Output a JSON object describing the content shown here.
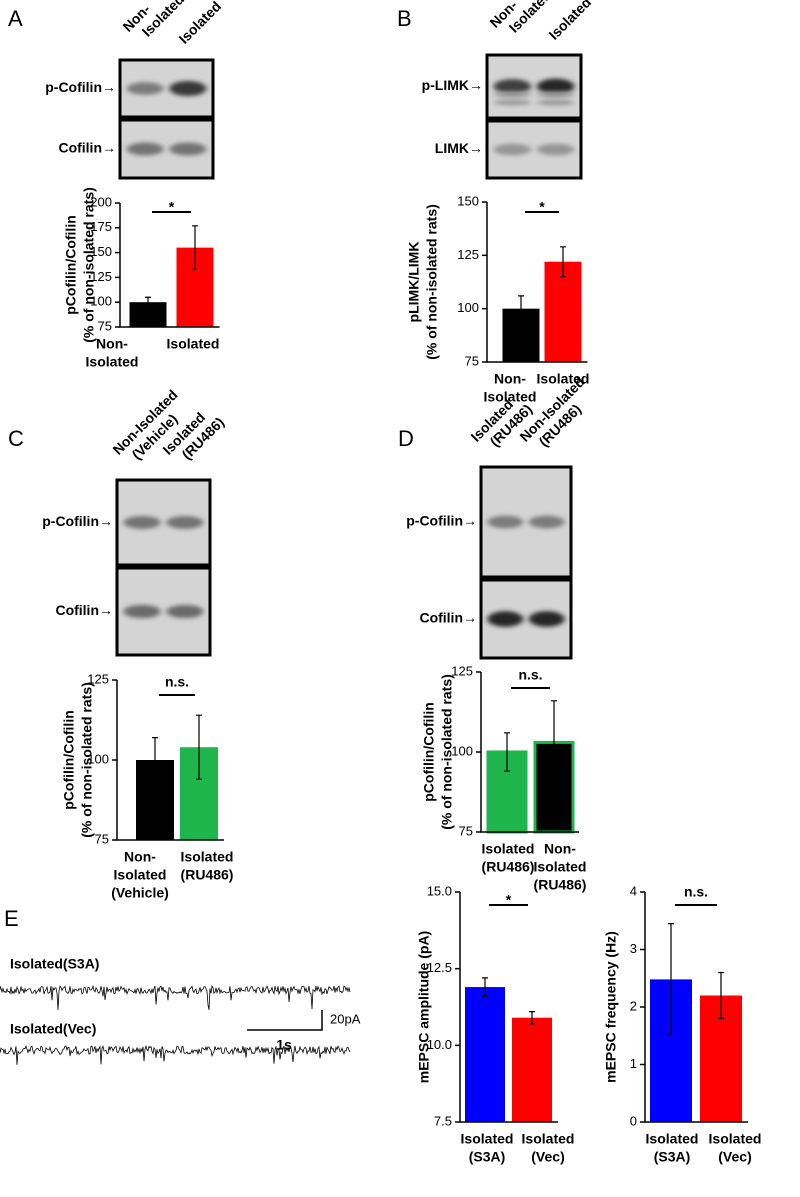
{
  "panels": [
    {
      "letter": "A",
      "lanes": [
        [
          "Non-",
          "Isolated"
        ],
        [
          "Isolated"
        ]
      ],
      "bands": [
        "p-Cofilin→",
        "Cofilin→"
      ]
    },
    {
      "letter": "B",
      "lanes": [
        [
          "Non-",
          "Isolated"
        ],
        [
          "Isolated"
        ]
      ],
      "bands": [
        "p-LIMK→",
        "LIMK→"
      ]
    },
    {
      "letter": "C",
      "lanes": [
        [
          "Non-Isolated",
          "(Vehicle)"
        ],
        [
          "Isolated",
          "(RU486)"
        ]
      ],
      "bands": [
        "p-Cofilin→",
        "Cofilin→"
      ]
    },
    {
      "letter": "D",
      "lanes": [
        [
          "Isolated",
          "(RU486)"
        ],
        [
          "Non-Isolated",
          "(RU486)"
        ]
      ],
      "bands": [
        "p-Cofilin→",
        "Cofilin→"
      ]
    },
    {
      "letter": "E",
      "traces": [
        "Isolated(S3A)",
        "Isolated(Vec)"
      ],
      "scale": [
        "20pA",
        "1s"
      ]
    }
  ],
  "chart_data": [
    {
      "type": "bar",
      "ylabel": [
        "pCofilin/Cofilin",
        "(% of non-isolated rats)"
      ],
      "categories": [
        [
          "Non-",
          "Isolated"
        ],
        [
          "Isolated"
        ]
      ],
      "values": [
        100,
        155
      ],
      "errors": [
        5,
        22
      ],
      "colors": [
        "#000000",
        "#ff0000"
      ],
      "annotation": "*",
      "ylim": [
        75,
        200
      ],
      "yticks": [
        75,
        100,
        125,
        150,
        175,
        200
      ]
    },
    {
      "type": "bar",
      "ylabel": [
        "pLIMK/LIMK",
        "(% of non-isolated rats)"
      ],
      "categories": [
        [
          "Non-",
          "Isolated"
        ],
        [
          "Isolated"
        ]
      ],
      "values": [
        100,
        122
      ],
      "errors": [
        6,
        7
      ],
      "colors": [
        "#000000",
        "#ff0000"
      ],
      "annotation": "*",
      "ylim": [
        75,
        150
      ],
      "yticks": [
        75,
        100,
        125,
        150
      ]
    },
    {
      "type": "bar",
      "ylabel": [
        "pCofilin/Cofilin",
        "(% of non-isolated rats)"
      ],
      "categories": [
        [
          "Non-",
          "Isolated",
          "(Vehicle)"
        ],
        [
          "Isolated",
          "(RU486)"
        ]
      ],
      "values": [
        100,
        104
      ],
      "errors": [
        7,
        10
      ],
      "colors": [
        "#000000",
        "#1db54c"
      ],
      "annotation": "n.s.",
      "ylim": [
        75,
        125
      ],
      "yticks": [
        75,
        100,
        125
      ]
    },
    {
      "type": "bar",
      "ylabel": [
        "pCofilin/Cofilin",
        "(% of non-isolated rats)"
      ],
      "categories": [
        [
          "Isolated",
          "(RU486)"
        ],
        [
          "Non-",
          "Isolated",
          "(RU486)"
        ]
      ],
      "values": [
        100,
        103
      ],
      "errors": [
        6,
        13
      ],
      "colors": [
        "#1db54c",
        "#000000"
      ],
      "edgecolor": "#1db54c",
      "annotation": "n.s.",
      "ylim": [
        75,
        125
      ],
      "yticks": [
        75,
        100,
        125
      ]
    },
    {
      "type": "bar",
      "ylabel": [
        "mEPSC amplitude (pA)"
      ],
      "categories": [
        [
          "Isolated",
          "(S3A)"
        ],
        [
          "Isolated",
          "(Vec)"
        ]
      ],
      "values": [
        11.9,
        10.9
      ],
      "errors": [
        0.3,
        0.2
      ],
      "colors": [
        "#0000ff",
        "#ff0000"
      ],
      "annotation": "*",
      "ylim": [
        7.5,
        15
      ],
      "yticks": [
        7.5,
        {
          "value": 10,
          "label": "10.0"
        },
        12.5,
        {
          "value": 15,
          "label": "15.0"
        }
      ]
    },
    {
      "type": "bar",
      "ylabel": [
        "mEPSC frequency (Hz)"
      ],
      "categories": [
        [
          "Isolated",
          "(S3A)"
        ],
        [
          "Isolated",
          "(Vec)"
        ]
      ],
      "values": [
        2.48,
        2.2
      ],
      "errors": [
        0.97,
        0.4
      ],
      "colors": [
        "#0000ff",
        "#ff0000"
      ],
      "annotation": "n.s.",
      "ylim": [
        0,
        4
      ],
      "yticks": [
        0,
        1,
        2,
        3,
        4
      ]
    }
  ]
}
